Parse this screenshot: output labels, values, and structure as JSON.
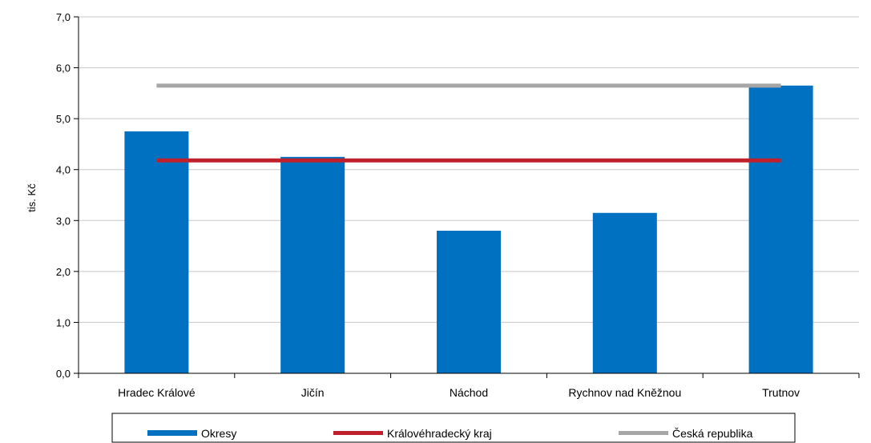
{
  "chart_data": {
    "type": "bar",
    "ylabel": "tis. Kč",
    "ylim": [
      0,
      7
    ],
    "yticks": [
      "0,0",
      "1,0",
      "2,0",
      "3,0",
      "4,0",
      "5,0",
      "6,0",
      "7,0"
    ],
    "grid": "horizontal",
    "legend_position": "bottom",
    "categories": [
      "Hradec Králové",
      "Jičín",
      "Náchod",
      "Rychnov nad Kněžnou",
      "Trutnov"
    ],
    "series": [
      {
        "name": "Okresy",
        "kind": "bar",
        "color": "#0070c0",
        "values": [
          4.75,
          4.25,
          2.8,
          3.15,
          5.65
        ]
      },
      {
        "name": "Královéhradecký kraj",
        "kind": "line",
        "color": "#c0202b",
        "values": [
          4.18,
          4.18,
          4.18,
          4.18,
          4.18
        ]
      },
      {
        "name": "Česká republika",
        "kind": "line",
        "color": "#a6a6a6",
        "values": [
          5.65,
          5.65,
          5.65,
          5.65,
          5.65
        ]
      }
    ]
  }
}
